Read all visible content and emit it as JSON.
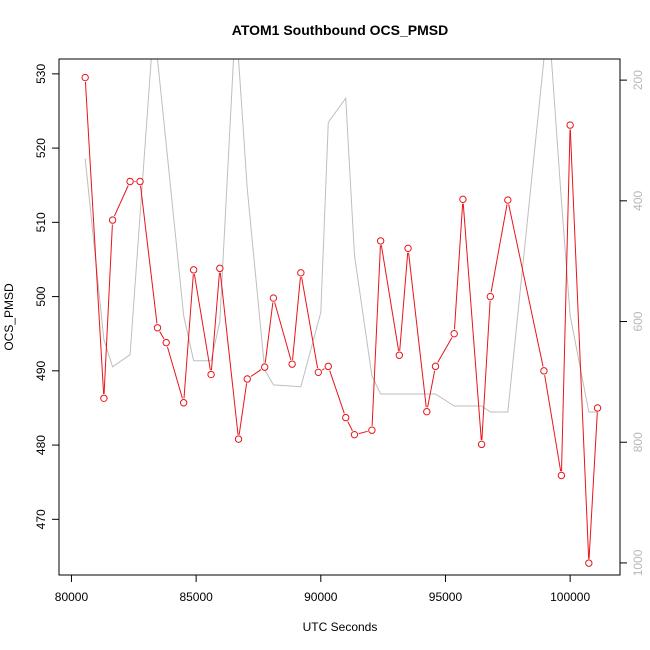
{
  "chart_data": {
    "type": "line",
    "title": "ATOM1 Southbound OCS_PMSD",
    "xlabel": "UTC Seconds",
    "ylabel": "OCS_PMSD",
    "xlim": [
      79500,
      102000
    ],
    "ylim": [
      462.5,
      532
    ],
    "y2lim": [
      1020,
      165
    ],
    "x_ticks": [
      80000,
      85000,
      90000,
      95000,
      100000
    ],
    "x_tick_labels": [
      "80000",
      "85000",
      "90000",
      "95000",
      "100000"
    ],
    "y_ticks": [
      470,
      480,
      490,
      500,
      510,
      520,
      530
    ],
    "y_tick_labels": [
      "470",
      "480",
      "490",
      "500",
      "510",
      "520",
      "530"
    ],
    "y2_ticks": [
      200,
      400,
      600,
      800,
      1000
    ],
    "y2_tick_labels": [
      "200",
      "400",
      "600",
      "800",
      "1000"
    ],
    "grid": false,
    "colors": {
      "primary": "#e8141b",
      "secondary": "#bebebe"
    },
    "series": [
      {
        "axis": "left",
        "marker": "circle",
        "x": [
          80550,
          81300,
          81650,
          82350,
          82750,
          83450,
          83800,
          84500,
          84900,
          85600,
          85950,
          86700,
          87050,
          87750,
          88100,
          88850,
          89200,
          89900,
          90300,
          91000,
          91350,
          92050,
          92400,
          93150,
          93500,
          94250,
          94600,
          95350,
          95700,
          96450,
          96800,
          97500,
          98950,
          99650,
          100000,
          100750,
          101100
        ],
        "y": [
          529.5,
          486.3,
          510.3,
          515.5,
          515.5,
          495.8,
          493.8,
          485.7,
          503.6,
          489.5,
          503.8,
          480.8,
          488.9,
          490.5,
          499.8,
          490.9,
          503.2,
          489.8,
          490.6,
          483.7,
          481.4,
          482.0,
          507.5,
          492.1,
          506.5,
          484.5,
          490.6,
          495.0,
          513.1,
          480.1,
          500.0,
          513.0,
          490.0,
          475.9,
          523.1,
          464.1,
          485.0
        ]
      },
      {
        "axis": "right",
        "marker": "none",
        "x": [
          80550,
          81300,
          81650,
          82350,
          83200,
          83450,
          84500,
          84900,
          85600,
          85950,
          86500,
          86700,
          87050,
          87750,
          88100,
          88850,
          89200,
          90000,
          90300,
          91000,
          91350,
          92050,
          92400,
          93150,
          93500,
          94250,
          94600,
          95350,
          95700,
          96450,
          96800,
          97500,
          98950,
          99250,
          99650,
          100000,
          100750,
          101100
        ],
        "y": [
          330,
          630,
          675,
          655,
          165,
          165,
          590,
          665,
          665,
          600,
          165,
          165,
          380,
          680,
          705,
          707,
          708,
          585,
          270,
          230,
          490,
          690,
          720,
          720,
          720,
          720,
          720,
          740,
          740,
          740,
          750,
          750,
          165,
          165,
          400,
          590,
          750,
          750
        ]
      }
    ]
  }
}
